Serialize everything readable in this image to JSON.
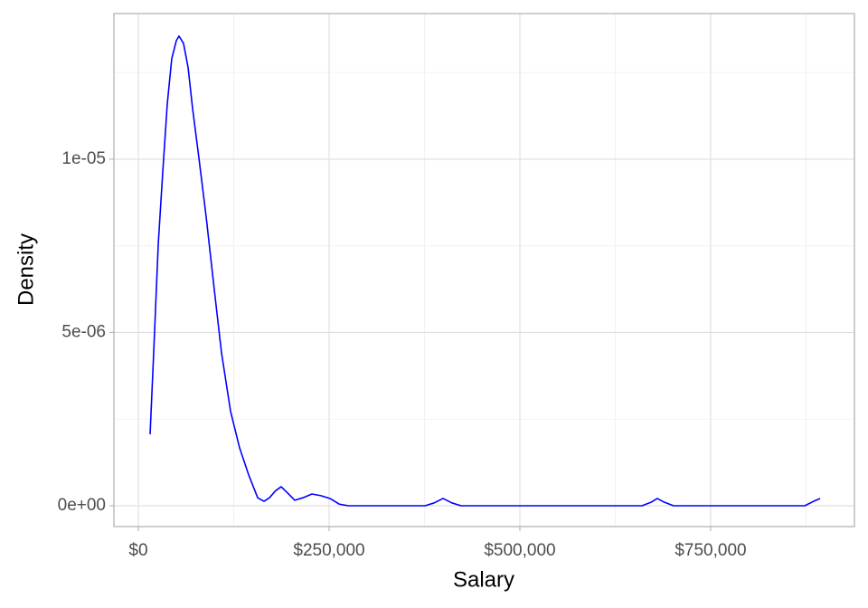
{
  "chart_data": {
    "type": "line",
    "x_label": "Salary",
    "y_label": "Density",
    "x": [
      15400,
      20100,
      26100,
      32000,
      37900,
      43800,
      49800,
      53300,
      59200,
      65200,
      71100,
      79400,
      88900,
      99500,
      109000,
      120900,
      132700,
      144600,
      156400,
      164700,
      171800,
      180100,
      187200,
      195500,
      205000,
      215600,
      227500,
      239300,
      251200,
      263000,
      274900,
      375600,
      387400,
      399300,
      411100,
      423000,
      660000,
      671800,
      680000,
      689500,
      701400,
      873200,
      885000,
      893400
    ],
    "values": [
      2.06e-06,
      4.41e-06,
      7.55e-06,
      9.63e-06,
      1.159e-05,
      1.29e-05,
      1.342e-05,
      1.355e-05,
      1.334e-05,
      1.264e-05,
      1.146e-05,
      1.003e-05,
      8.33e-06,
      6.24e-06,
      4.41e-06,
      2.72e-06,
      1.67e-06,
      8.9e-07,
      2.3e-07,
      1.3e-07,
      2.3e-07,
      4.4e-07,
      5.5e-07,
      3.7e-07,
      1.6e-07,
      2.3e-07,
      3.4e-07,
      2.9e-07,
      2.1e-07,
      5e-08,
      0,
      0,
      8e-08,
      2.1e-07,
      8e-08,
      0,
      0,
      1e-07,
      2.1e-07,
      1e-07,
      0,
      0,
      1.3e-07,
      2.1e-07
    ],
    "color": "#0000ff",
    "xlim": [
      -32000,
      938400
    ],
    "ylim": [
      -6e-07,
      1.42e-05
    ],
    "xticks": [
      {
        "value": 0,
        "label": "$0"
      },
      {
        "value": 250000,
        "label": "$250,000"
      },
      {
        "value": 500000,
        "label": "$500,000"
      },
      {
        "value": 750000,
        "label": "$750,000"
      }
    ],
    "yticks": [
      {
        "value": 0,
        "label": "0e+00"
      },
      {
        "value": 5e-06,
        "label": "5e-06"
      },
      {
        "value": 1e-05,
        "label": "1e-05"
      }
    ],
    "xminor": [
      125000,
      375000,
      625000,
      875000
    ],
    "yminor": [
      2.5e-06,
      7.5e-06,
      1.25e-05
    ],
    "grid": true
  }
}
